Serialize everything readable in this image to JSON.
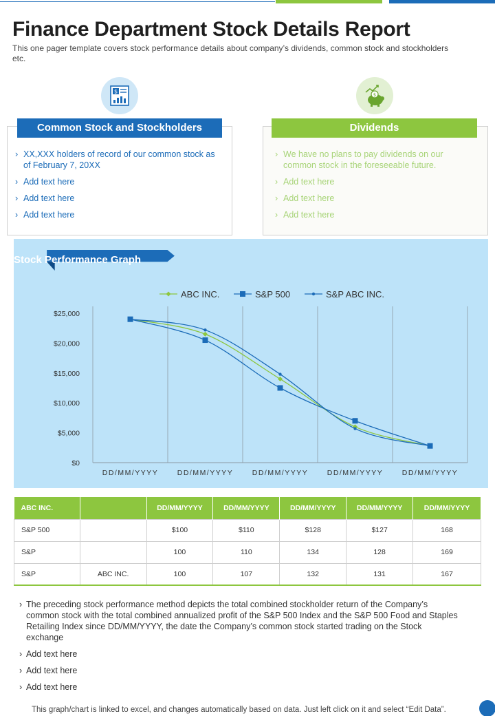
{
  "header": {
    "title": "Finance Department Stock Details Report",
    "subtitle": "This one pager template covers stock performance details about company’s dividends, common stock and stockholders etc."
  },
  "colors": {
    "blue": "#1c6cb8",
    "green": "#8dc63f",
    "light_blue": "#bde3f9"
  },
  "icons": {
    "left": "financial-report-icon",
    "right": "piggy-bank-growth-icon"
  },
  "common_stock": {
    "title": "Common Stock and Stockholders",
    "items": [
      "XX,XXX holders of record of our common stock as of February 7, 20XX",
      "Add text here",
      "Add text here",
      "Add text here"
    ]
  },
  "dividends": {
    "title": "Dividends",
    "items": [
      "We have no plans to pay dividends on our common stock in the foreseeable future.",
      "Add text here",
      "Add text here",
      "Add text here"
    ]
  },
  "graph": {
    "banner": "Stock Performance Graph"
  },
  "chart_data": {
    "type": "line",
    "title": "Stock Performance Graph",
    "categories": [
      "DD/MM/YYYY",
      "DD/MM/YYYY",
      "DD/MM/YYYY",
      "DD/MM/YYYY",
      "DD/MM/YYYY"
    ],
    "y_ticks": [
      "$0",
      "$5,000",
      "$10,000",
      "$15,000",
      "$20,000",
      "$25,000"
    ],
    "ylim": [
      0,
      25000
    ],
    "series": [
      {
        "name": "ABC INC.",
        "color": "#8dc63f",
        "marker": "diamond",
        "values": [
          24000,
          21500,
          14000,
          6000,
          2800
        ]
      },
      {
        "name": "S&P 500",
        "color": "#1c6cb8",
        "marker": "square",
        "values": [
          24000,
          20500,
          12500,
          7000,
          2800
        ]
      },
      {
        "name": "S&P ABC INC.",
        "color": "#1c6cb8",
        "marker": "dot",
        "values": [
          24000,
          22200,
          14800,
          5700,
          2800
        ]
      }
    ],
    "grid": "vertical",
    "legend": "top"
  },
  "table": {
    "headers": [
      "ABC INC.",
      "",
      "DD/MM/YYYY",
      "DD/MM/YYYY",
      "DD/MM/YYYY",
      "DD/MM/YYYY",
      "DD/MM/YYYY"
    ],
    "rows": [
      [
        "S&P 500",
        "",
        "$100",
        "$110",
        "$128",
        "$127",
        "168"
      ],
      [
        "S&P",
        "",
        "100",
        "110",
        "134",
        "128",
        "169"
      ],
      [
        "S&P",
        "ABC INC.",
        "100",
        "107",
        "132",
        "131",
        "167"
      ]
    ]
  },
  "notes": [
    "The preceding stock performance method depicts the total combined stockholder return of the Company’s common stock with the total combined annualized profit of the S&P 500 Index and the S&P 500 Food and Staples Retailing Index since DD/MM/YYYY, the date the Company’s common stock started trading on the Stock exchange",
    "Add text here",
    "Add text here",
    "Add text here"
  ],
  "footer": "This graph/chart is linked to excel, and changes automatically based on data. Just left click on it and select “Edit Data”."
}
